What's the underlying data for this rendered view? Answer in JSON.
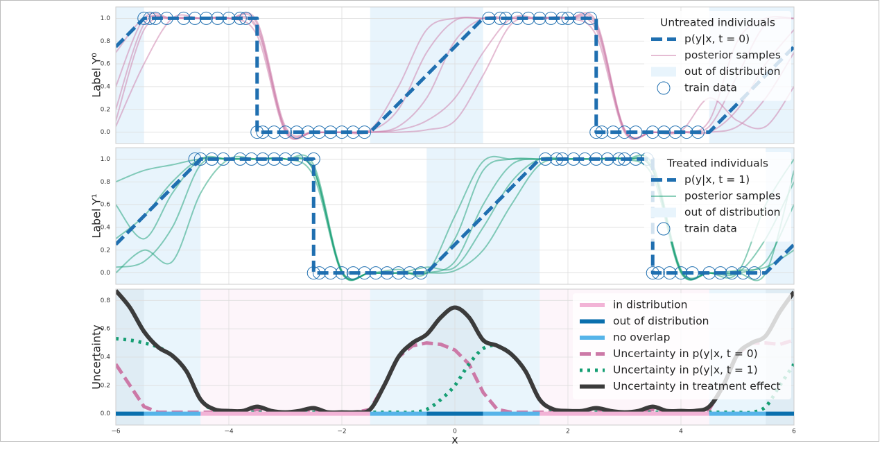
{
  "chart_data": [
    {
      "type": "line",
      "ylabel": "Label Y⁰",
      "legend_title": "Untreated individuals",
      "legend": "upper right",
      "ylim": [
        -0.1,
        1.1
      ],
      "grid": true,
      "yticks": [
        {
          "value": 0,
          "label": "0.0"
        },
        0.2,
        0.4,
        0.6,
        0.8,
        {
          "value": 1,
          "label": "1.0"
        }
      ],
      "series": [
        {
          "name": "p(y|x, t = 0)",
          "color": "#1f6fb0",
          "style": "dash",
          "x": [
            -6,
            -5.5,
            -3.5,
            -3.5,
            -1.5,
            0.5,
            2.5,
            2.5,
            4.5,
            6
          ],
          "values": [
            0.75,
            1,
            1,
            0,
            0,
            1,
            1,
            0,
            0,
            0.75
          ]
        },
        {
          "name": "posterior samples",
          "color": "#cc79a7",
          "style": "line",
          "x": [
            -6,
            -5.5,
            -5,
            -4.5,
            -4,
            -3.5,
            -3,
            -2.5,
            -2,
            -1.5,
            -1,
            -0.5,
            0,
            0.5,
            1,
            1.5,
            2,
            2.5,
            3,
            3.5,
            4,
            4.5,
            5,
            5.5,
            6
          ],
          "samples": [
            [
              0.1,
              0.9,
              1,
              1,
              1,
              0.95,
              0.02,
              0,
              0,
              0,
              0.05,
              0.3,
              0.8,
              1,
              1,
              1,
              1,
              0.95,
              0.02,
              0,
              0,
              0,
              0.2,
              0.6,
              0.9
            ],
            [
              0.4,
              1,
              1,
              1,
              1,
              0.9,
              0.01,
              0,
              0,
              0,
              0.02,
              0.1,
              0.3,
              0.7,
              1,
              1,
              1,
              0.9,
              0.01,
              0,
              0,
              0.05,
              0.5,
              0.95,
              1
            ],
            [
              0.05,
              0.6,
              1,
              1,
              1,
              0.97,
              0.05,
              0,
              0,
              0.01,
              0.2,
              0.7,
              0.98,
              1,
              1,
              1,
              1,
              0.97,
              0.03,
              0,
              0,
              0,
              0.05,
              0.3,
              0.7
            ],
            [
              0.7,
              1,
              1,
              1,
              1,
              0.85,
              0,
              0,
              0,
              0,
              0,
              0.02,
              0.1,
              0.5,
              0.95,
              1,
              1,
              0.85,
              0,
              0,
              0,
              0.1,
              0.8,
              1,
              1
            ],
            [
              0.2,
              0.95,
              1,
              1,
              1,
              0.92,
              0.03,
              0,
              0,
              0.02,
              0.4,
              0.9,
              1,
              1,
              1,
              1,
              1,
              0.93,
              0.02,
              0,
              0.01,
              0.3,
              0.1,
              0.05,
              0.4
            ]
          ]
        },
        {
          "name": "out of distribution",
          "color": "#e8f4fc",
          "style": "patch",
          "intervals": [
            [
              -6,
              -5.5
            ],
            [
              -1.5,
              0.5
            ],
            [
              4.5,
              6
            ]
          ]
        },
        {
          "name": "train data",
          "color": "#1f6fb0",
          "style": "scatter",
          "x": [
            -5.5,
            -5.4,
            -5.3,
            -5.1,
            -4.8,
            -4.6,
            -4.4,
            -4.2,
            -4.0,
            -3.8,
            -3.7,
            0.6,
            0.8,
            0.9,
            1.1,
            1.3,
            1.5,
            1.7,
            1.9,
            2.0,
            2.2,
            2.4,
            -3.5,
            -3.4,
            -3.2,
            -3.0,
            -2.8,
            -2.6,
            -2.4,
            -2.2,
            -2.0,
            -1.8,
            -1.6,
            2.5,
            2.6,
            2.8,
            3.0,
            3.2,
            3.5,
            3.7,
            3.9,
            4.1,
            4.3
          ],
          "values": [
            1,
            1,
            1,
            1,
            1,
            1,
            1,
            1,
            1,
            1,
            1,
            1,
            1,
            1,
            1,
            1,
            1,
            1,
            1,
            1,
            1,
            1,
            0,
            0,
            0,
            0,
            0,
            0,
            0,
            0,
            0,
            0,
            0,
            0,
            0,
            0,
            0,
            0,
            0,
            0,
            0,
            0,
            0
          ]
        }
      ]
    },
    {
      "type": "line",
      "ylabel": "Label Y¹",
      "legend_title": "Treated individuals",
      "legend": "upper right",
      "ylim": [
        -0.1,
        1.1
      ],
      "grid": true,
      "yticks": [
        {
          "value": 0,
          "label": "0.0"
        },
        0.2,
        0.4,
        0.6,
        0.8,
        {
          "value": 1,
          "label": "1.0"
        }
      ],
      "series": [
        {
          "name": "p(y|x, t = 1)",
          "color": "#1f6fb0",
          "style": "dash",
          "x": [
            -6,
            -4.5,
            -2.5,
            -2.5,
            -0.5,
            1.5,
            3.5,
            3.5,
            5.5,
            6
          ],
          "values": [
            0.25,
            1,
            1,
            0,
            0,
            1,
            1,
            0,
            0,
            0.25
          ]
        },
        {
          "name": "posterior samples",
          "color": "#159e73",
          "style": "line",
          "x": [
            -6,
            -5.5,
            -5,
            -4.5,
            -4,
            -3.5,
            -3,
            -2.5,
            -2,
            -1.5,
            -1,
            -0.5,
            0,
            0.5,
            1,
            1.5,
            2,
            2.5,
            3,
            3.5,
            4,
            4.5,
            5,
            5.5,
            6
          ],
          "samples": [
            [
              0.3,
              0.5,
              0.8,
              1,
              1,
              1,
              1,
              0.9,
              0.01,
              0,
              0,
              0,
              0.1,
              0.6,
              0.95,
              1,
              1,
              1,
              1,
              0.9,
              0.01,
              0,
              0,
              0.1,
              0.6
            ],
            [
              0.05,
              0.1,
              0.4,
              0.95,
              1,
              1,
              1,
              0.95,
              0.02,
              0,
              0,
              0.02,
              0.3,
              0.9,
              1,
              1,
              1,
              1,
              1,
              0.95,
              0.03,
              0,
              0,
              0,
              0.9
            ],
            [
              0.8,
              0.9,
              0.95,
              1,
              1,
              1,
              1,
              0.85,
              0,
              0,
              0,
              0,
              0.02,
              0.2,
              0.6,
              0.95,
              1,
              1,
              1,
              0.85,
              0,
              0,
              0,
              0.3,
              0.8
            ],
            [
              0,
              0.2,
              0.1,
              0.7,
              1,
              1,
              1,
              0.92,
              0.01,
              0,
              0.03,
              0,
              0.5,
              0.98,
              1,
              1,
              1,
              1,
              1,
              0.92,
              0.02,
              0,
              0.02,
              0.05,
              0.2
            ],
            [
              0.6,
              0.3,
              0.7,
              1,
              1,
              1,
              1,
              0.9,
              0,
              0,
              0,
              0.05,
              0.05,
              0.4,
              0.8,
              1,
              1,
              1,
              1,
              0.9,
              0.01,
              0,
              0,
              0.6,
              1
            ]
          ]
        },
        {
          "name": "out of distribution",
          "color": "#e8f4fc",
          "style": "patch",
          "intervals": [
            [
              -6,
              -4.5
            ],
            [
              -0.5,
              1.5
            ],
            [
              5.5,
              6
            ]
          ]
        },
        {
          "name": "train data",
          "color": "#1f6fb0",
          "style": "scatter",
          "x": [
            -4.6,
            -4.5,
            -4.3,
            -4.1,
            -3.8,
            -3.6,
            -3.4,
            -3.2,
            -3.0,
            -2.8,
            -2.5,
            1.6,
            1.8,
            1.9,
            2.1,
            2.3,
            2.5,
            2.7,
            2.9,
            3.0,
            3.2,
            3.4,
            -2.5,
            -2.4,
            -2.2,
            -2.0,
            -1.8,
            -1.6,
            -1.4,
            -1.2,
            -1.0,
            -0.8,
            -0.6,
            3.5,
            3.6,
            3.8,
            4.0,
            4.2,
            4.5,
            4.7,
            4.9,
            5.1,
            5.3
          ],
          "values": [
            1,
            1,
            1,
            1,
            1,
            1,
            1,
            1,
            1,
            1,
            1,
            1,
            1,
            1,
            1,
            1,
            1,
            1,
            1,
            1,
            1,
            1,
            0,
            0,
            0,
            0,
            0,
            0,
            0,
            0,
            0,
            0,
            0,
            0,
            0,
            0,
            0,
            0,
            0,
            0,
            0,
            0,
            0
          ]
        }
      ]
    },
    {
      "type": "line",
      "ylabel": "Uncertainty",
      "xlabel": "x",
      "legend": "upper right",
      "xlim": [
        -6,
        6
      ],
      "ylim": [
        -0.08,
        0.88
      ],
      "grid": true,
      "xticks": [
        {
          "value": -6,
          "label": "−6"
        },
        {
          "value": -4,
          "label": "−4"
        },
        {
          "value": -2,
          "label": "−2"
        },
        0,
        2,
        4,
        6
      ],
      "yticks": [
        {
          "value": 0,
          "label": "0.0"
        },
        0.2,
        0.4,
        0.6,
        0.8
      ],
      "series": [
        {
          "name": "in distribution",
          "color": "#f2b3d6",
          "style": "band",
          "intervals": [
            [
              -4.5,
              -1.5
            ],
            [
              1.5,
              4.5
            ]
          ]
        },
        {
          "name": "out of distribution",
          "color": "#0a6fad",
          "style": "band",
          "intervals": [
            [
              -6,
              -5.5
            ],
            [
              -0.5,
              0.5
            ],
            [
              5.5,
              6
            ]
          ]
        },
        {
          "name": "no overlap",
          "color": "#56b4e9",
          "style": "band",
          "intervals": [
            [
              -5.5,
              -4.5
            ],
            [
              -1.5,
              -0.5
            ],
            [
              0.5,
              1.5
            ],
            [
              4.5,
              5.5
            ]
          ]
        },
        {
          "name": "Uncertainty in p(y|x, t = 0)",
          "color": "#cc79a7",
          "style": "dash",
          "x": [
            -6,
            -5.75,
            -5.5,
            -5.25,
            -5,
            -4.75,
            -4.5,
            -4.25,
            -4,
            -3.75,
            -3.5,
            -3.25,
            -3,
            -2.75,
            -2.5,
            -2.25,
            -2,
            -1.75,
            -1.5,
            -1.25,
            -1,
            -0.75,
            -0.5,
            -0.25,
            0,
            0.25,
            0.5,
            0.75,
            1,
            1.25,
            1.5,
            1.75,
            2,
            2.25,
            2.5,
            2.75,
            3,
            3.25,
            3.5,
            3.75,
            4,
            4.25,
            4.5,
            4.75,
            5,
            5.25,
            5.5,
            5.75,
            6
          ],
          "values": [
            0.35,
            0.2,
            0.05,
            0.01,
            0.01,
            0.01,
            0.01,
            0.01,
            0.01,
            0.01,
            0.03,
            0.01,
            0.01,
            0.01,
            0.03,
            0.01,
            0.01,
            0.01,
            0.03,
            0.2,
            0.4,
            0.48,
            0.5,
            0.49,
            0.45,
            0.35,
            0.15,
            0.03,
            0.01,
            0.01,
            0.01,
            0.01,
            0.01,
            0.01,
            0.03,
            0.01,
            0.01,
            0.01,
            0.03,
            0.01,
            0.01,
            0.01,
            0.03,
            0.2,
            0.42,
            0.5,
            0.5,
            0.49,
            0.52
          ]
        },
        {
          "name": "Uncertainty in p(y|x, t = 1)",
          "color": "#159e73",
          "style": "dot",
          "x": [
            -6,
            -5.75,
            -5.5,
            -5.25,
            -5,
            -4.75,
            -4.5,
            -4.25,
            -4,
            -3.75,
            -3.5,
            -3.25,
            -3,
            -2.75,
            -2.5,
            -2.25,
            -2,
            -1.75,
            -1.5,
            -1.25,
            -1,
            -0.75,
            -0.5,
            -0.25,
            0,
            0.25,
            0.5,
            0.75,
            1,
            1.25,
            1.5,
            1.75,
            2,
            2.25,
            2.5,
            2.75,
            3,
            3.25,
            3.5,
            3.75,
            4,
            4.25,
            4.5,
            4.75,
            5,
            5.25,
            5.5,
            5.75,
            6
          ],
          "values": [
            0.53,
            0.52,
            0.5,
            0.47,
            0.41,
            0.3,
            0.1,
            0.02,
            0.01,
            0.01,
            0.01,
            0.01,
            0.01,
            0.01,
            0.01,
            0.01,
            0.01,
            0.01,
            0.01,
            0.01,
            0.01,
            0.01,
            0.03,
            0.1,
            0.2,
            0.35,
            0.46,
            0.48,
            0.42,
            0.3,
            0.1,
            0.02,
            0.01,
            0.01,
            0.01,
            0.01,
            0.01,
            0.01,
            0.01,
            0.01,
            0.01,
            0.01,
            0.01,
            0.01,
            0.01,
            0.01,
            0.05,
            0.2,
            0.35
          ]
        },
        {
          "name": "Uncertainty in treatment effect",
          "color": "#3b3b3b",
          "style": "thick",
          "x": [
            -6,
            -5.75,
            -5.5,
            -5.25,
            -5,
            -4.75,
            -4.5,
            -4.25,
            -4,
            -3.75,
            -3.5,
            -3.25,
            -3,
            -2.75,
            -2.5,
            -2.25,
            -2,
            -1.75,
            -1.5,
            -1.25,
            -1,
            -0.75,
            -0.5,
            -0.25,
            0,
            0.25,
            0.5,
            0.75,
            1,
            1.25,
            1.5,
            1.75,
            2,
            2.25,
            2.5,
            2.75,
            3,
            3.25,
            3.5,
            3.75,
            4,
            4.25,
            4.5,
            4.75,
            5,
            5.25,
            5.5,
            5.75,
            6
          ],
          "values": [
            0.87,
            0.75,
            0.58,
            0.47,
            0.41,
            0.3,
            0.1,
            0.03,
            0.02,
            0.02,
            0.05,
            0.02,
            0.01,
            0.02,
            0.04,
            0.01,
            0.01,
            0.01,
            0.03,
            0.2,
            0.4,
            0.5,
            0.56,
            0.68,
            0.75,
            0.68,
            0.52,
            0.48,
            0.42,
            0.3,
            0.1,
            0.03,
            0.02,
            0.02,
            0.04,
            0.02,
            0.01,
            0.02,
            0.05,
            0.02,
            0.02,
            0.02,
            0.05,
            0.2,
            0.42,
            0.5,
            0.55,
            0.72,
            0.86
          ]
        }
      ]
    }
  ]
}
